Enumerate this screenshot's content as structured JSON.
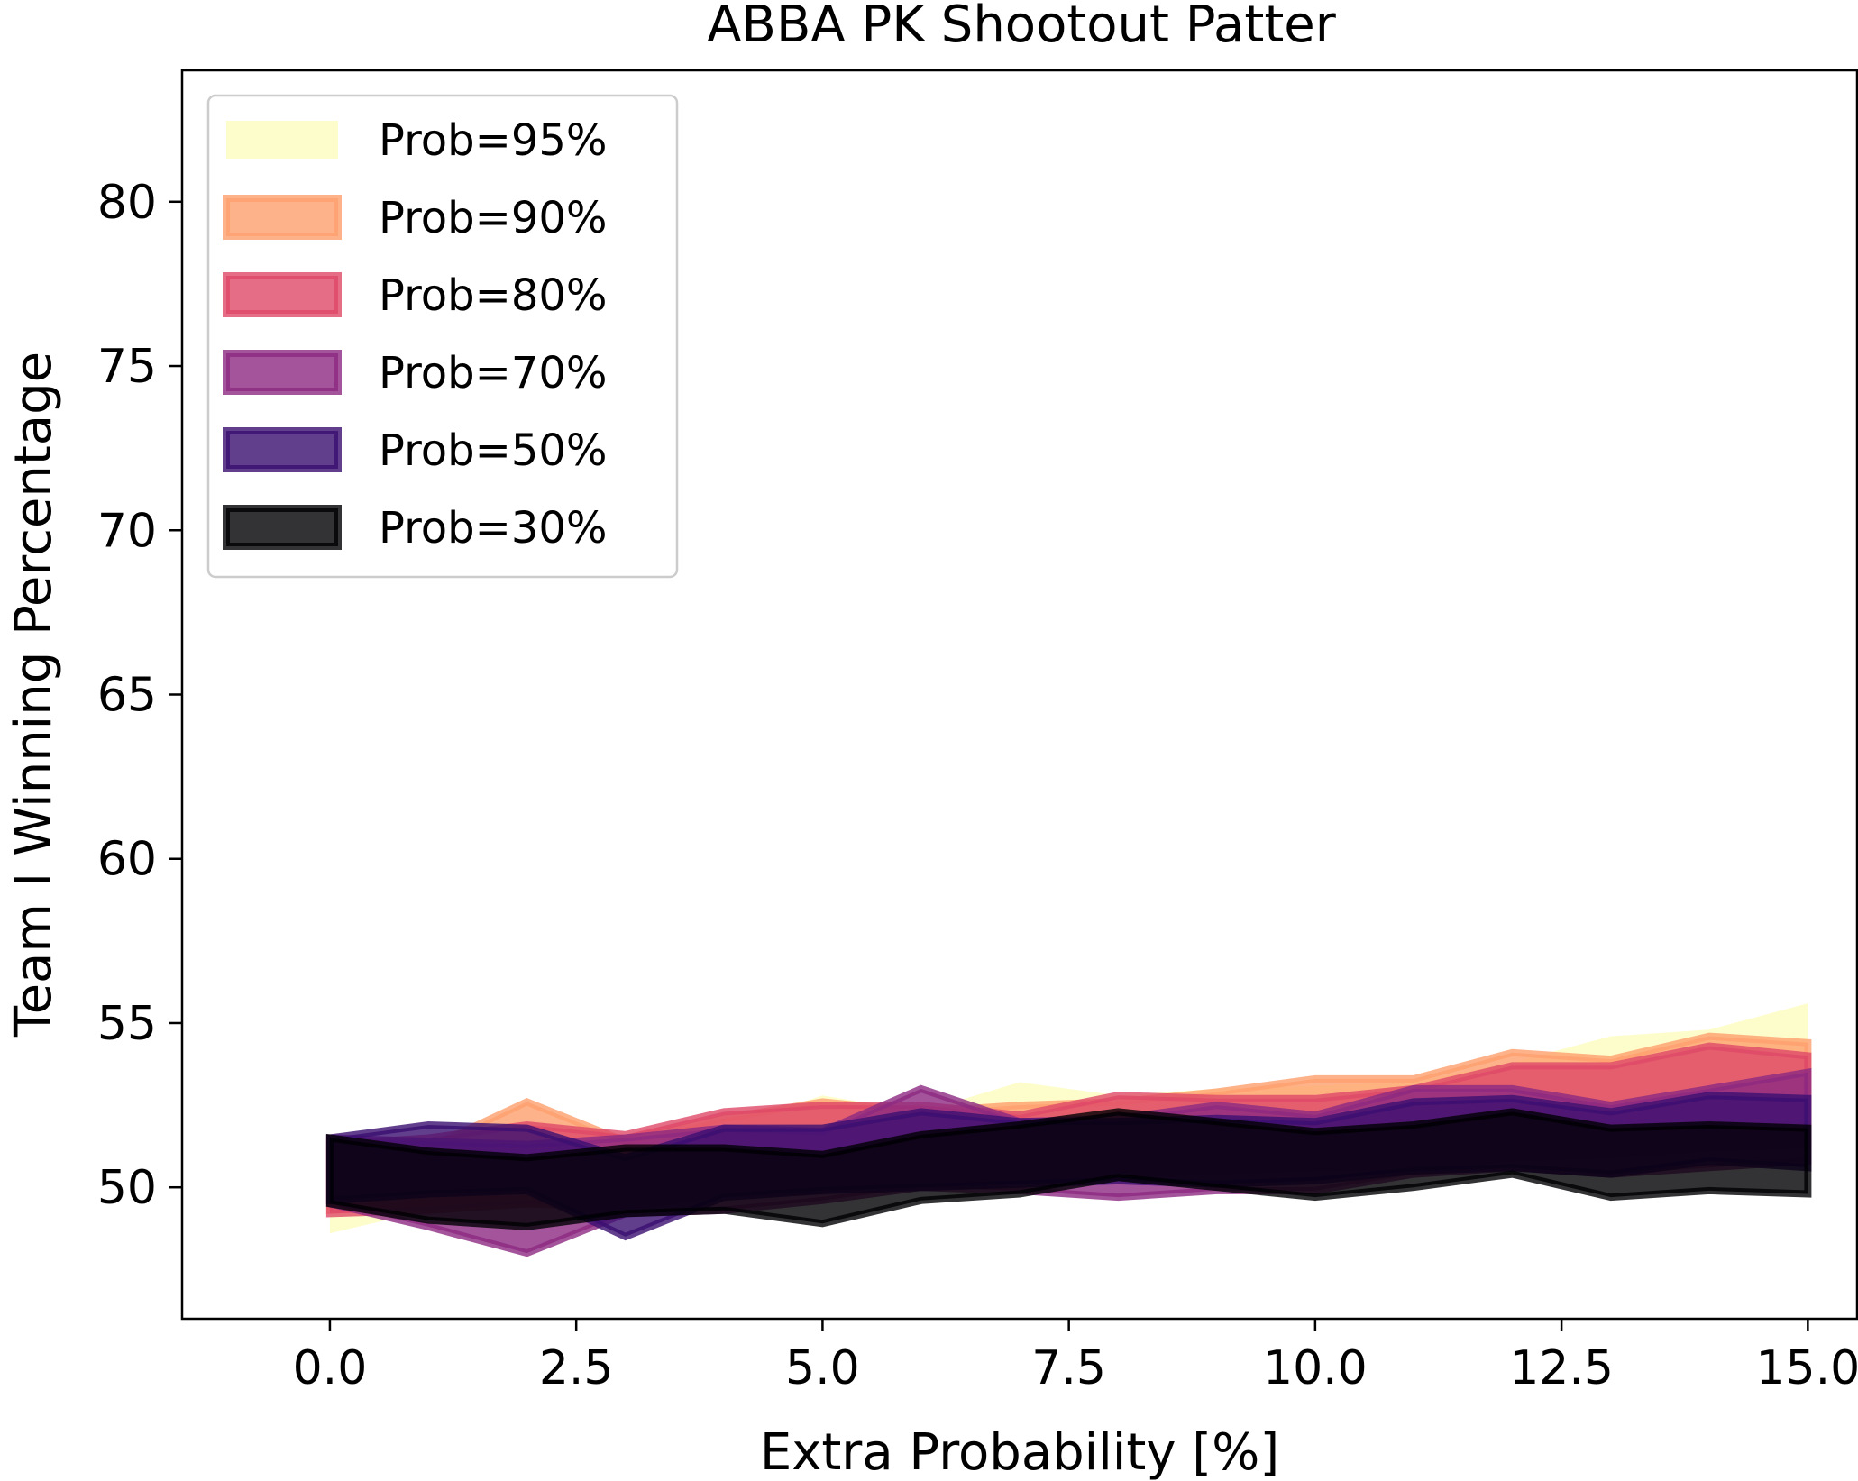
{
  "chart_data": {
    "type": "area",
    "title": "ABBA PK Shootout Patter",
    "xlabel": "Extra Probability [%]",
    "ylabel": "Team I Winning Percentage",
    "xlim": [
      -1.5,
      15.5
    ],
    "ylim": [
      46.0,
      84.0
    ],
    "xticks": [
      "0.0",
      "2.5",
      "5.0",
      "7.5",
      "10.0",
      "12.5",
      "15.0"
    ],
    "yticks": [
      "50",
      "55",
      "60",
      "65",
      "70",
      "75",
      "80"
    ],
    "legend_position": "upper-left",
    "x": [
      0,
      1,
      2,
      3,
      4,
      5,
      6,
      7,
      8,
      9,
      10,
      11,
      12,
      13,
      14,
      15
    ],
    "series": [
      {
        "name": "Prob=95%",
        "color": "#fcfdbf",
        "edge": "#fcfdbf",
        "upper": [
          51.0,
          51.3,
          51.5,
          51.6,
          51.8,
          52.8,
          52.3,
          53.2,
          52.8,
          53.0,
          53.1,
          53.2,
          53.8,
          54.6,
          54.8,
          55.6
        ],
        "lower": [
          48.6,
          49.3,
          49.7,
          50.0,
          50.2,
          50.5,
          50.6,
          50.8,
          51.0,
          51.1,
          51.3,
          51.5,
          51.7,
          51.7,
          51.9,
          52.3
        ]
      },
      {
        "name": "Prob=90%",
        "color": "#fe9f6d",
        "edge": "#fe9f6d",
        "upper": [
          51.4,
          51.2,
          52.6,
          51.4,
          52.1,
          52.6,
          52.3,
          52.5,
          52.6,
          52.9,
          53.3,
          53.3,
          54.1,
          53.9,
          54.6,
          54.4
        ],
        "lower": [
          49.3,
          49.5,
          49.9,
          50.0,
          50.2,
          50.2,
          50.4,
          50.5,
          50.6,
          50.7,
          51.0,
          51.0,
          51.4,
          51.5,
          51.8,
          51.9
        ]
      },
      {
        "name": "Prob=80%",
        "color": "#de4968",
        "edge": "#de4968",
        "upper": [
          51.3,
          51.5,
          51.9,
          51.6,
          52.3,
          52.5,
          52.5,
          52.2,
          52.8,
          52.7,
          52.7,
          53.0,
          53.7,
          53.7,
          54.3,
          54.0
        ],
        "lower": [
          49.2,
          49.3,
          49.5,
          49.4,
          49.8,
          49.9,
          50.2,
          50.3,
          50.4,
          50.5,
          50.6,
          50.6,
          50.9,
          51.0,
          51.2,
          51.3
        ]
      },
      {
        "name": "Prob=70%",
        "color": "#8c2981",
        "edge": "#8c2981",
        "upper": [
          51.5,
          51.4,
          51.3,
          51.5,
          51.8,
          51.7,
          53.0,
          52.0,
          52.1,
          52.5,
          52.2,
          53.0,
          53.0,
          52.5,
          53.0,
          53.5
        ],
        "lower": [
          49.5,
          48.8,
          48.0,
          49.2,
          49.3,
          49.6,
          50.0,
          49.9,
          49.7,
          49.9,
          49.9,
          50.4,
          50.6,
          50.4,
          50.6,
          50.8
        ]
      },
      {
        "name": "Prob=50%",
        "color": "#3b0f70",
        "edge": "#3b0f70",
        "upper": [
          51.5,
          51.9,
          51.8,
          50.9,
          51.8,
          51.8,
          52.3,
          52.0,
          52.0,
          52.1,
          52.0,
          52.6,
          52.7,
          52.3,
          52.8,
          52.7
        ],
        "lower": [
          49.6,
          49.8,
          49.9,
          48.5,
          49.7,
          49.9,
          50.0,
          50.1,
          50.2,
          50.1,
          50.2,
          50.5,
          50.6,
          50.4,
          50.8,
          50.6
        ]
      },
      {
        "name": "Prob=30%",
        "color": "#000004",
        "edge": "#000004",
        "upper": [
          51.5,
          51.1,
          50.9,
          51.2,
          51.2,
          51.0,
          51.6,
          51.9,
          52.3,
          52.0,
          51.7,
          51.9,
          52.3,
          51.8,
          51.9,
          51.8
        ],
        "lower": [
          49.5,
          49.0,
          48.8,
          49.2,
          49.3,
          48.9,
          49.6,
          49.8,
          50.3,
          50.0,
          49.7,
          50.0,
          50.4,
          49.7,
          49.9,
          49.8
        ]
      }
    ]
  }
}
